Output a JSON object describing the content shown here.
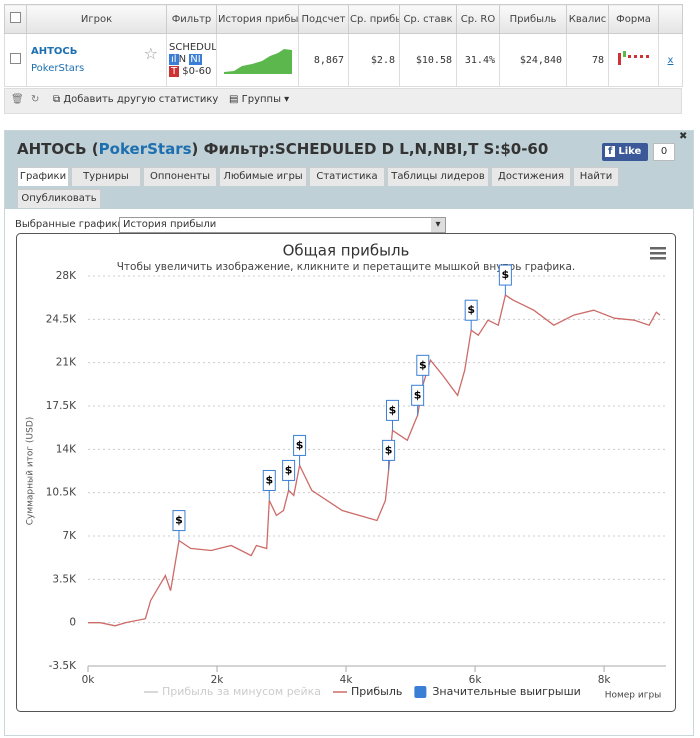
{
  "table": {
    "headers": [
      "Игрок",
      "Фильтр",
      "История прибы",
      "Подсчет",
      "Ср. прибы",
      "Ср. ставк",
      "Ср. RO",
      "Прибыль",
      "Квалис",
      "Форма"
    ],
    "row": {
      "player": "АНТОСЬ",
      "site": "PokerStars",
      "filter": [
        "SCHEDUL",
        "N",
        "NI",
        "$0-60"
      ],
      "cells": [
        "8,867",
        "$2.8",
        "$10.58",
        "31.4%",
        "$24,840",
        "78"
      ],
      "remove": "x"
    }
  },
  "toolbar": {
    "add_stat": "Добавить другую статистику",
    "groups": "Группы"
  },
  "panel": {
    "title_prefix": "АНТОСЬ (",
    "title_site": "PokerStars",
    "title_suffix": ") Фильтр:SCHEDULED D L,N,NBI,T S:$0-60",
    "like": "Like",
    "like_count": "0",
    "tabs": [
      "Графики",
      "Турниры",
      "Оппоненты",
      "Любимые игры",
      "Статистика",
      "Таблицы лидеров",
      "Достижения",
      "Найти",
      "Опубликовать"
    ],
    "selected_label": "Выбранные графики:",
    "selected_value": "История прибыли"
  },
  "chart_data": {
    "type": "line",
    "title": "Общая прибыль",
    "subtitle": "Чтобы увеличить изображение, кликните и перетащите мышкой внутрь графика.",
    "y_label": "Суммарный итог (USD)",
    "x_label": "Номер игры",
    "x": [
      0,
      190,
      420,
      580,
      890,
      970,
      1200,
      1280,
      1410,
      1590,
      1910,
      2220,
      2530,
      2610,
      2770,
      2810,
      2920,
      3030,
      3110,
      3190,
      3280,
      3470,
      3940,
      4480,
      4610,
      4660,
      4720,
      4950,
      5110,
      5190,
      5310,
      5500,
      5730,
      5840,
      5940,
      6050,
      6200,
      6360,
      6470,
      6590,
      6910,
      7220,
      7530,
      7840,
      8160,
      8470,
      8700,
      8810,
      8867
    ],
    "series": [
      {
        "name": "Прибыль за минусом рейка",
        "color": "#cccccc",
        "visible": false
      },
      {
        "name": "Прибыль",
        "color": "#cd6b68",
        "visible": true,
        "values": [
          0,
          0,
          -250,
          0,
          320,
          1780,
          3800,
          2590,
          6630,
          6000,
          5830,
          6230,
          5420,
          6230,
          5990,
          9870,
          8660,
          9060,
          10680,
          10280,
          12700,
          10680,
          9060,
          8250,
          9870,
          12300,
          15530,
          14730,
          16750,
          19170,
          21200,
          19970,
          18360,
          20380,
          23620,
          23220,
          24430,
          24030,
          26460,
          26050,
          25240,
          24030,
          24840,
          25240,
          24590,
          24430,
          24030,
          25080,
          24840
        ]
      },
      {
        "name": "Значительные выигрыши",
        "color": "#3a7fd5",
        "visible": true,
        "marker": "$",
        "x": [
          1410,
          2810,
          3110,
          3280,
          4660,
          4720,
          5110,
          5190,
          5940,
          6470
        ],
        "values": [
          6630,
          9870,
          10680,
          12700,
          12300,
          15530,
          16750,
          19170,
          23620,
          26460
        ]
      }
    ],
    "xlim": [
      0,
      8867
    ],
    "xticks": [
      {
        "value": 0,
        "label": "0k"
      },
      {
        "value": 2000,
        "label": "2k"
      },
      {
        "value": 4000,
        "label": "4k"
      },
      {
        "value": 6000,
        "label": "6k"
      },
      {
        "value": 8000,
        "label": "8k"
      }
    ],
    "ylim": [
      -3500,
      28000
    ],
    "yticks": [
      {
        "value": -3500,
        "label": "-3.5K"
      },
      0,
      {
        "value": 3500,
        "label": "3.5K"
      },
      {
        "value": 7000,
        "label": "7K"
      },
      {
        "value": 10500,
        "label": "10.5K"
      },
      {
        "value": 14000,
        "label": "14K"
      },
      {
        "value": 17500,
        "label": "17.5K"
      },
      {
        "value": 21000,
        "label": "21K"
      },
      {
        "value": 24500,
        "label": "24.5K"
      },
      {
        "value": 28000,
        "label": "28K"
      }
    ],
    "grid": true
  }
}
